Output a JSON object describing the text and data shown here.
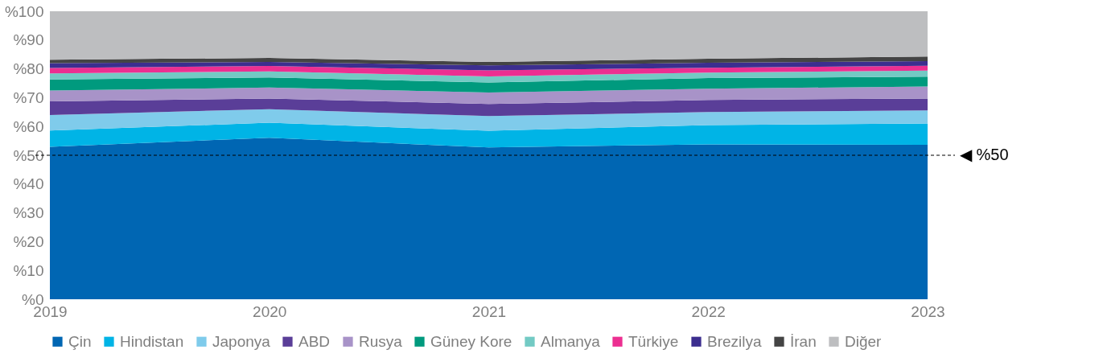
{
  "chart_data": {
    "type": "area",
    "stacked": true,
    "categories": [
      "2019",
      "2020",
      "2021",
      "2022",
      "2023"
    ],
    "series": [
      {
        "name": "Çin",
        "color": "#0066b3",
        "values": [
          52.9,
          56.1,
          52.7,
          53.8,
          53.6
        ]
      },
      {
        "name": "Hindistan",
        "color": "#00b4e6",
        "values": [
          5.7,
          5.2,
          5.8,
          6.7,
          7.4
        ]
      },
      {
        "name": "Japonya",
        "color": "#7fcbeb",
        "values": [
          5.4,
          4.7,
          5.1,
          4.5,
          4.6
        ]
      },
      {
        "name": "ABD",
        "color": "#5a3e98",
        "values": [
          4.7,
          3.7,
          4.2,
          4.2,
          4.1
        ]
      },
      {
        "name": "Rusya",
        "color": "#a893c8",
        "values": [
          3.8,
          3.8,
          4.0,
          3.9,
          4.2
        ]
      },
      {
        "name": "Güney Kore",
        "color": "#009a7e",
        "values": [
          3.8,
          3.5,
          3.5,
          3.7,
          3.4
        ]
      },
      {
        "name": "Almanya",
        "color": "#73cac4",
        "values": [
          2.1,
          2.1,
          2.1,
          1.9,
          2.1
        ]
      },
      {
        "name": "Türkiye",
        "color": "#ec2f91",
        "values": [
          1.9,
          1.9,
          2.1,
          1.7,
          1.7
        ]
      },
      {
        "name": "Brezilya",
        "color": "#3c2e8f",
        "values": [
          1.7,
          1.4,
          1.7,
          1.7,
          1.6
        ]
      },
      {
        "name": "İran",
        "color": "#444444",
        "values": [
          1.2,
          1.4,
          1.2,
          1.4,
          1.6
        ]
      },
      {
        "name": "Diğer",
        "color": "#bdbec0",
        "values": [
          16.8,
          16.2,
          17.6,
          16.5,
          15.7
        ]
      }
    ],
    "ylim": [
      0,
      100
    ],
    "yticks": [
      {
        "value": 0,
        "label": "%0"
      },
      {
        "value": 10,
        "label": "%10"
      },
      {
        "value": 20,
        "label": "%20"
      },
      {
        "value": 30,
        "label": "%30"
      },
      {
        "value": 40,
        "label": "%40"
      },
      {
        "value": 50,
        "label": "%50"
      },
      {
        "value": 60,
        "label": "%60"
      },
      {
        "value": 70,
        "label": "%70"
      },
      {
        "value": 80,
        "label": "%80"
      },
      {
        "value": 90,
        "label": "%90"
      },
      {
        "value": 100,
        "label": "%100"
      }
    ],
    "ref_lines": [
      {
        "axis": "y",
        "value": 50,
        "label": "◀ %50",
        "color": "#000000",
        "line_style": "dashed"
      }
    ],
    "grid": false,
    "legend": "bottom"
  }
}
